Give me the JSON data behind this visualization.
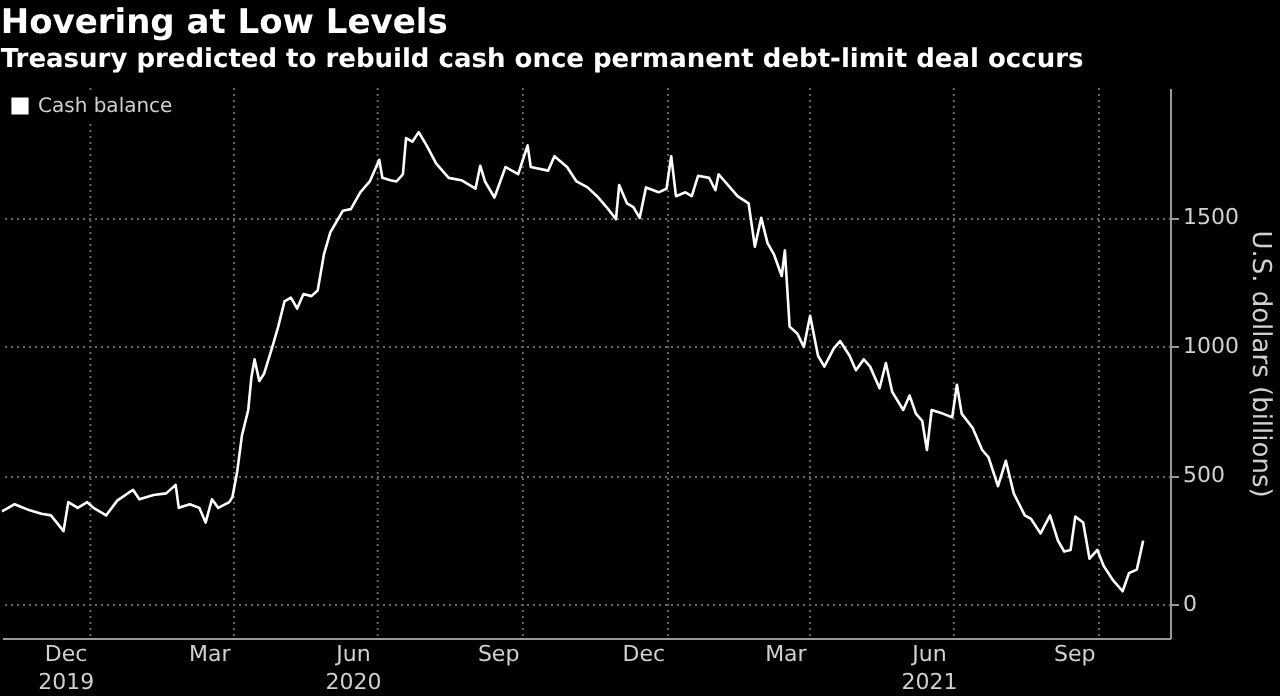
{
  "chart_data": {
    "type": "line",
    "title": "Hovering at Low Levels",
    "subtitle": "Treasury predicted to rebuild cash once permanent debt-limit deal occurs",
    "ylabel": "U.S. dollars (billions)",
    "x": [
      "2019-11-06",
      "2019-11-14",
      "2019-11-22",
      "2019-12-01",
      "2019-12-07",
      "2019-12-15",
      "2019-12-18",
      "2019-12-24",
      "2019-12-30",
      "2020-01-03",
      "2020-01-11",
      "2020-01-18",
      "2020-01-28",
      "2020-02-01",
      "2020-02-10",
      "2020-02-18",
      "2020-02-24",
      "2020-02-26",
      "2020-03-04",
      "2020-03-10",
      "2020-03-14",
      "2020-03-18",
      "2020-03-22",
      "2020-03-29",
      "2020-03-31",
      "2020-04-03",
      "2020-04-06",
      "2020-04-10",
      "2020-04-12",
      "2020-04-14",
      "2020-04-17",
      "2020-04-20",
      "2020-04-25",
      "2020-04-29",
      "2020-05-03",
      "2020-05-07",
      "2020-05-11",
      "2020-05-15",
      "2020-05-20",
      "2020-05-24",
      "2020-05-28",
      "2020-06-01",
      "2020-06-05",
      "2020-06-09",
      "2020-06-14",
      "2020-06-20",
      "2020-06-26",
      "2020-07-02",
      "2020-07-04",
      "2020-07-09",
      "2020-07-13",
      "2020-07-17",
      "2020-07-19",
      "2020-07-23",
      "2020-07-27",
      "2020-08-01",
      "2020-08-07",
      "2020-08-15",
      "2020-08-23",
      "2020-09-01",
      "2020-09-04",
      "2020-09-07",
      "2020-09-13",
      "2020-09-20",
      "2020-09-28",
      "2020-10-04",
      "2020-10-06",
      "2020-10-17",
      "2020-10-21",
      "2020-10-29",
      "2020-11-04",
      "2020-11-11",
      "2020-11-17",
      "2020-11-23",
      "2020-11-29",
      "2020-12-01",
      "2020-12-06",
      "2020-12-10",
      "2020-12-14",
      "2020-12-18",
      "2020-12-26",
      "2020-12-31",
      "2021-01-03",
      "2021-01-06",
      "2021-01-12",
      "2021-01-16",
      "2021-01-20",
      "2021-01-27",
      "2021-01-31",
      "2021-02-02",
      "2021-02-08",
      "2021-02-14",
      "2021-02-21",
      "2021-02-25",
      "2021-03-01",
      "2021-03-05",
      "2021-03-09",
      "2021-03-14",
      "2021-03-16",
      "2021-03-19",
      "2021-03-24",
      "2021-03-28",
      "2021-04-01",
      "2021-04-06",
      "2021-04-10",
      "2021-04-16",
      "2021-04-20",
      "2021-04-26",
      "2021-04-30",
      "2021-05-05",
      "2021-05-09",
      "2021-05-15",
      "2021-05-19",
      "2021-05-23",
      "2021-05-30",
      "2021-06-03",
      "2021-06-07",
      "2021-06-11",
      "2021-06-14",
      "2021-06-17",
      "2021-06-24",
      "2021-06-30",
      "2021-07-03",
      "2021-07-06",
      "2021-07-13",
      "2021-07-19",
      "2021-07-23",
      "2021-07-29",
      "2021-08-03",
      "2021-08-08",
      "2021-08-15",
      "2021-08-19",
      "2021-08-25",
      "2021-08-31",
      "2021-09-05",
      "2021-09-09",
      "2021-09-13",
      "2021-09-16",
      "2021-09-21",
      "2021-09-25",
      "2021-09-30",
      "2021-10-04",
      "2021-10-10",
      "2021-10-16",
      "2021-10-20",
      "2021-10-25",
      "2021-10-29"
    ],
    "series": [
      {
        "name": "Cash balance",
        "color": "#ffffff",
        "values": [
          360,
          388,
          368,
          351,
          345,
          284,
          396,
          374,
          396,
          374,
          345,
          402,
          444,
          407,
          424,
          430,
          463,
          374,
          388,
          374,
          317,
          407,
          374,
          396,
          416,
          514,
          654,
          753,
          879,
          949,
          865,
          893,
          992,
          1076,
          1174,
          1188,
          1146,
          1202,
          1194,
          1216,
          1357,
          1441,
          1483,
          1525,
          1531,
          1596,
          1638,
          1722,
          1652,
          1643,
          1638,
          1666,
          1806,
          1792,
          1829,
          1778,
          1708,
          1652,
          1643,
          1610,
          1699,
          1638,
          1576,
          1694,
          1666,
          1778,
          1694,
          1680,
          1736,
          1694,
          1638,
          1615,
          1581,
          1539,
          1492,
          1624,
          1553,
          1539,
          1497,
          1615,
          1596,
          1610,
          1736,
          1581,
          1596,
          1581,
          1660,
          1652,
          1604,
          1666,
          1624,
          1581,
          1553,
          1385,
          1497,
          1399,
          1357,
          1272,
          1371,
          1076,
          1048,
          997,
          1118,
          963,
          921,
          992,
          1020,
          963,
          907,
          949,
          921,
          837,
          935,
          823,
          753,
          809,
          739,
          711,
          598,
          753,
          739,
          725,
          851,
          739,
          683,
          598,
          570,
          458,
          556,
          430,
          345,
          331,
          275,
          345,
          247,
          205,
          211,
          340,
          317,
          177,
          211,
          149,
          93,
          51,
          121,
          135,
          247
        ]
      }
    ],
    "xlim": [
      "2019-11-06",
      "2021-11-15"
    ],
    "xticks": [
      {
        "value": "2019-12-16",
        "label": "Dec\n2019"
      },
      {
        "value": "2020-01-01",
        "label": null
      },
      {
        "value": "2020-03-16",
        "label": "Mar"
      },
      {
        "value": "2020-04-01",
        "label": null
      },
      {
        "value": "2020-06-15",
        "label": "Jun\n2020"
      },
      {
        "value": "2020-07-01",
        "label": null
      },
      {
        "value": "2020-09-15",
        "label": "Sep"
      },
      {
        "value": "2020-10-01",
        "label": null
      },
      {
        "value": "2020-12-16",
        "label": "Dec"
      },
      {
        "value": "2021-01-01",
        "label": null
      },
      {
        "value": "2021-03-16",
        "label": "Mar"
      },
      {
        "value": "2021-04-01",
        "label": null
      },
      {
        "value": "2021-06-15",
        "label": "Jun\n2021"
      },
      {
        "value": "2021-07-01",
        "label": null
      },
      {
        "value": "2021-09-15",
        "label": "Sep"
      },
      {
        "value": "2021-10-01",
        "label": null
      }
    ],
    "ylim": [
      -130,
      2000
    ],
    "yticks": [
      0,
      500,
      1000,
      1500
    ],
    "grid": true,
    "legend": "top left",
    "line_style": "solid",
    "marker": "none"
  }
}
